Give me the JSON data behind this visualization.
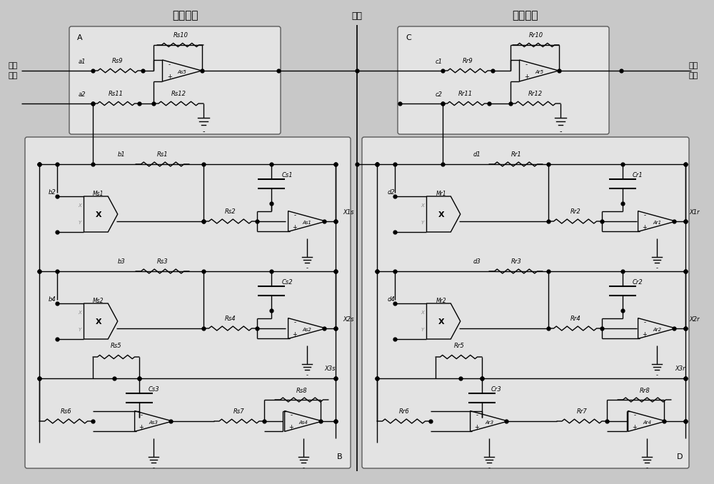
{
  "title_send": "发送系统",
  "title_recv": "接收系统",
  "title_channel": "信道",
  "label_send_in1": "发送",
  "label_send_in2": "输入",
  "label_recv_out1": "接收",
  "label_recv_out2": "输出",
  "bg_color": "#c8c8c8",
  "fig_width": 10.0,
  "fig_height": 6.78,
  "dpi": 100
}
